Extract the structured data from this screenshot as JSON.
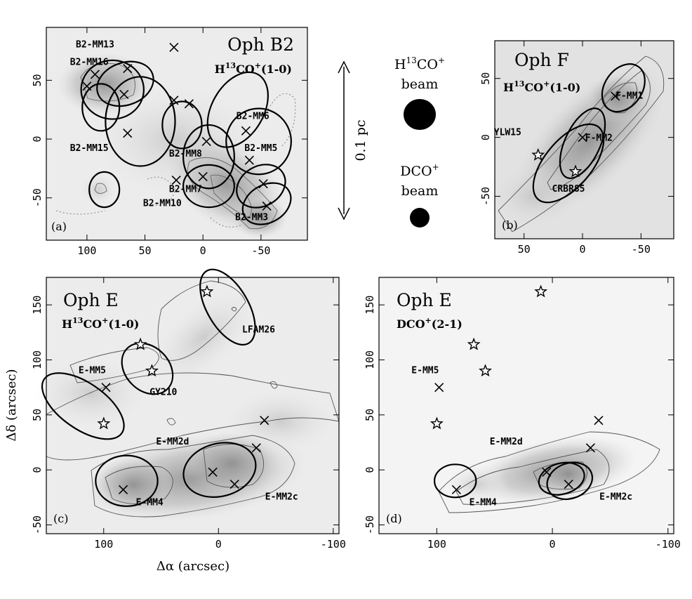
{
  "figure": {
    "axis_labels": {
      "x": "Δα (arcsec)",
      "y": "Δδ (arcsec)"
    },
    "beams": {
      "h13co_label_html": "H<sup>13</sup>CO<sup>+</sup>",
      "h13co_label": "H13CO+",
      "dco_label": "DCO+",
      "beam_word": "beam",
      "scale_bar_label": "0.1 pc"
    },
    "panels": [
      {
        "id": "a",
        "letter": "(a)",
        "title": "Oph B2",
        "line": "H13CO+(1-0)",
        "xlim": [
          135,
          -90
        ],
        "ylim": [
          -86,
          95
        ],
        "xticks": [
          100,
          50,
          0,
          -50
        ],
        "yticks": [
          50,
          0,
          -50
        ],
        "crosses": [
          [
            25,
            78
          ],
          [
            65,
            60
          ],
          [
            93,
            55
          ],
          [
            100,
            45
          ],
          [
            68,
            38
          ],
          [
            25,
            33
          ],
          [
            12,
            30
          ],
          [
            65,
            5
          ],
          [
            -37,
            7
          ],
          [
            -3,
            -2
          ],
          [
            -40,
            -18
          ],
          [
            0,
            -32
          ],
          [
            23,
            -35
          ],
          [
            -52,
            -38
          ],
          [
            -55,
            -57
          ]
        ],
        "stars": [],
        "ellipses": [
          [
            78,
            42,
            27,
            25,
            0
          ],
          [
            67,
            47,
            25,
            18,
            -20
          ],
          [
            88,
            27,
            16,
            20,
            0
          ],
          [
            54,
            15,
            30,
            38,
            0
          ],
          [
            -30,
            25,
            35,
            22,
            -60
          ],
          [
            18,
            12,
            17,
            20,
            0
          ],
          [
            -5,
            -15,
            22,
            27,
            0
          ],
          [
            -48,
            -2,
            28,
            28,
            0
          ],
          [
            -5,
            -40,
            22,
            18,
            0
          ],
          [
            -50,
            -40,
            22,
            17,
            -30
          ],
          [
            -55,
            -55,
            22,
            16,
            -30
          ],
          [
            85,
            -43,
            13,
            15,
            0
          ]
        ],
        "labels": [
          {
            "t": "B2-MM13",
            "x": 93,
            "y": 78
          },
          {
            "t": "B2-MM16",
            "x": 98,
            "y": 63
          },
          {
            "t": "B2-MM15",
            "x": 98,
            "y": -10
          },
          {
            "t": "B2-MM8",
            "x": 15,
            "y": -15
          },
          {
            "t": "B2-MM6",
            "x": -43,
            "y": 17
          },
          {
            "t": "B2-MM5",
            "x": -50,
            "y": -10
          },
          {
            "t": "B2-MM7",
            "x": 15,
            "y": -45
          },
          {
            "t": "B2-MM10",
            "x": 35,
            "y": -57
          },
          {
            "t": "B2-MM3",
            "x": -42,
            "y": -69
          }
        ]
      },
      {
        "id": "b",
        "letter": "(b)",
        "title": "Oph F",
        "line": "H13CO+(1-0)",
        "xlim": [
          75,
          -78
        ],
        "ylim": [
          -86,
          82
        ],
        "xticks": [
          50,
          0,
          -50
        ],
        "yticks": [
          50,
          0,
          -50
        ],
        "crosses": [
          [
            -28,
            35
          ],
          [
            0,
            0
          ]
        ],
        "stars": [
          [
            38,
            -15
          ],
          [
            6,
            -29
          ]
        ],
        "ellipses": [
          [
            -35,
            42,
            16,
            22,
            35
          ],
          [
            0,
            -5,
            15,
            32,
            25
          ],
          [
            12,
            -22,
            20,
            40,
            40
          ]
        ],
        "labels": [
          {
            "t": "F-MM1",
            "x": -40,
            "y": 33
          },
          {
            "t": "F-MM2",
            "x": -14,
            "y": -3
          },
          {
            "t": "YLW15",
            "x": 64,
            "y": 2
          },
          {
            "t": "CRBR85",
            "x": 12,
            "y": -46
          }
        ]
      },
      {
        "id": "c",
        "letter": "(c)",
        "title": "Oph E",
        "line": "H13CO+(1-0)",
        "xlim": [
          150,
          -105
        ],
        "ylim": [
          -58,
          175
        ],
        "xticks": [
          100,
          0,
          -100
        ],
        "yticks": [
          150,
          100,
          50,
          0,
          -50
        ],
        "crosses": [
          [
            98,
            75
          ],
          [
            -40,
            45
          ],
          [
            -33,
            20
          ],
          [
            5,
            -2
          ],
          [
            -14,
            -13
          ],
          [
            83,
            -18
          ]
        ],
        "stars": [
          [
            68,
            114
          ],
          [
            58,
            90
          ],
          [
            100,
            42
          ],
          [
            10,
            162
          ]
        ],
        "ellipses": [
          [
            -8,
            148,
            18,
            38,
            -30
          ],
          [
            62,
            92,
            19,
            26,
            -45
          ],
          [
            118,
            58,
            20,
            43,
            -55
          ],
          [
            -1,
            0,
            32,
            24,
            -15
          ],
          [
            80,
            -10,
            27,
            23,
            0
          ]
        ],
        "labels": [
          {
            "t": "LFAM26",
            "x": -35,
            "y": 125
          },
          {
            "t": "GY210",
            "x": 48,
            "y": 68
          },
          {
            "t": "E-MM5",
            "x": 110,
            "y": 88
          },
          {
            "t": "E-MM2d",
            "x": 40,
            "y": 23
          },
          {
            "t": "E-MM4",
            "x": 60,
            "y": -32
          },
          {
            "t": "E-MM2c",
            "x": -55,
            "y": -27
          }
        ]
      },
      {
        "id": "d",
        "letter": "(d)",
        "title": "Oph E",
        "line": "DCO+(2-1)",
        "xlim": [
          150,
          -105
        ],
        "ylim": [
          -58,
          175
        ],
        "xticks": [
          100,
          0,
          -100
        ],
        "yticks": [
          150,
          100,
          50,
          0,
          -50
        ],
        "crosses": [
          [
            98,
            75
          ],
          [
            -40,
            45
          ],
          [
            -33,
            20
          ],
          [
            5,
            -2
          ],
          [
            -14,
            -13
          ],
          [
            83,
            -18
          ]
        ],
        "stars": [
          [
            68,
            114
          ],
          [
            58,
            90
          ],
          [
            100,
            42
          ],
          [
            10,
            162
          ]
        ],
        "ellipses": [
          [
            -8,
            -8,
            20,
            14,
            -15
          ],
          [
            -15,
            -10,
            20,
            16,
            -20
          ],
          [
            84,
            -10,
            18,
            15,
            0
          ]
        ],
        "labels": [
          {
            "t": "E-MM5",
            "x": 110,
            "y": 88
          },
          {
            "t": "E-MM2d",
            "x": 40,
            "y": 23
          },
          {
            "t": "E-MM4",
            "x": 60,
            "y": -32
          },
          {
            "t": "E-MM2c",
            "x": -55,
            "y": -27
          }
        ]
      }
    ]
  }
}
